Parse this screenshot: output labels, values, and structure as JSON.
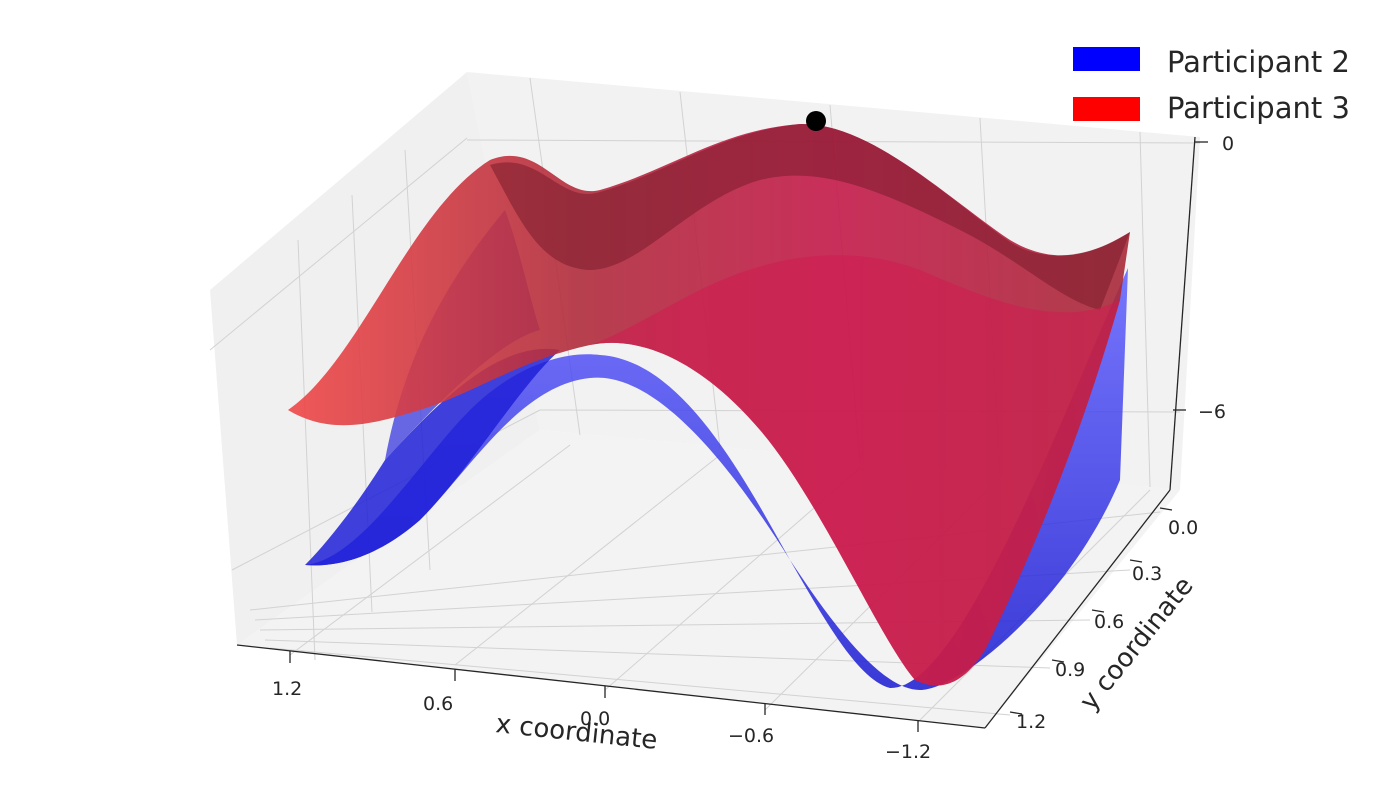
{
  "chart_data": {
    "type": "surface3d",
    "title": "",
    "xlabel": "x coordinate",
    "ylabel": "y coordinate",
    "zlabel": "",
    "x_ticks": [
      "1.2",
      "0.6",
      "0.0",
      "−0.6",
      "−1.2"
    ],
    "x_tick_values": [
      1.2,
      0.6,
      0.0,
      -0.6,
      -1.2
    ],
    "y_ticks": [
      "0.0",
      "0.3",
      "0.6",
      "0.9",
      "1.2"
    ],
    "y_tick_values": [
      0.0,
      0.3,
      0.6,
      0.9,
      1.2
    ],
    "z_ticks": [
      "0",
      "−6"
    ],
    "z_tick_values": [
      0,
      -6
    ],
    "xlim": [
      1.4,
      -1.4
    ],
    "ylim": [
      0.0,
      1.4
    ],
    "zlim": [
      -10,
      0
    ],
    "grid": true,
    "legend_position": "top-right",
    "series": [
      {
        "name": "Participant 2",
        "color": "#0000ff"
      },
      {
        "name": "Participant 3",
        "color": "#ff0000"
      }
    ],
    "highlight_point": {
      "x": -0.6,
      "y": 0.0,
      "z": 0.0,
      "color": "#000000"
    }
  }
}
